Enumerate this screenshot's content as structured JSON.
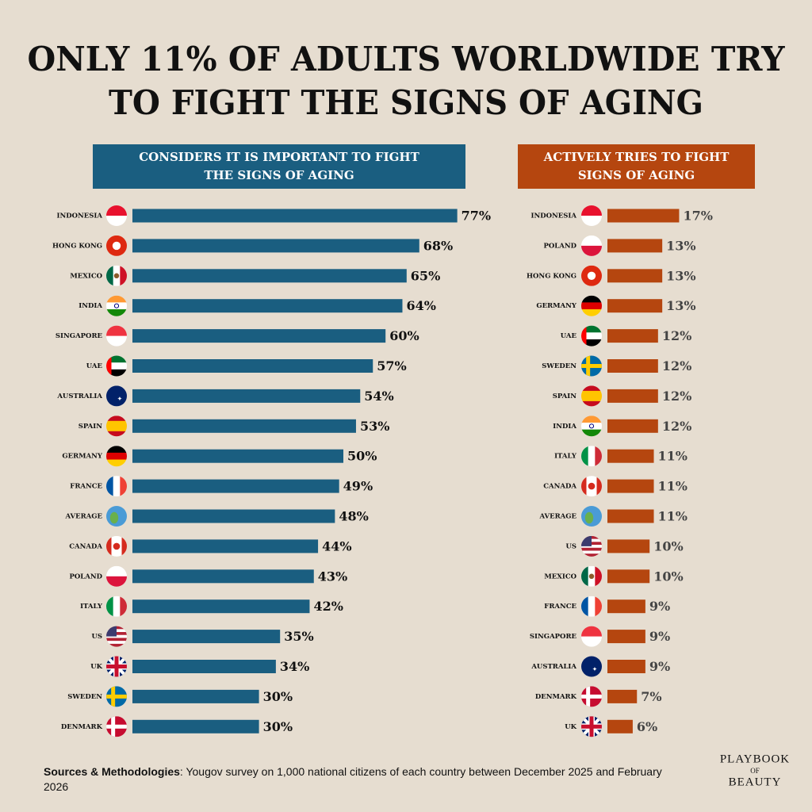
{
  "title": [
    "ONLY 11% OF ADULTS WORLDWIDE TRY",
    "TO FIGHT THE SIGNS OF AGING"
  ],
  "chart_data": [
    {
      "type": "bar",
      "title": [
        "CONSIDERS IT IS IMPORTANT TO FIGHT",
        "THE SIGNS OF AGING"
      ],
      "categories": [
        "INDONESIA",
        "HONG KONG",
        "MEXICO",
        "INDIA",
        "SINGAPORE",
        "UAE",
        "AUSTRALIA",
        "SPAIN",
        "GERMANY",
        "FRANCE",
        "AVERAGE",
        "CANADA",
        "POLAND",
        "ITALY",
        "US",
        "UK",
        "SWEDEN",
        "DENMARK"
      ],
      "values": [
        77,
        68,
        65,
        64,
        60,
        57,
        54,
        53,
        50,
        49,
        48,
        44,
        43,
        42,
        35,
        34,
        30,
        30
      ],
      "value_labels": [
        "77%",
        "68%",
        "65%",
        "64%",
        "60%",
        "57%",
        "54%",
        "53%",
        "50%",
        "49%",
        "48%",
        "44%",
        "43%",
        "42%",
        "35%",
        "34%",
        "30%",
        "30%"
      ],
      "color": "#1a5e80"
    },
    {
      "type": "bar",
      "title": [
        "ACTIVELY TRIES TO FIGHT",
        "SIGNS OF AGING"
      ],
      "categories": [
        "INDONESIA",
        "POLAND",
        "HONG KONG",
        "GERMANY",
        "UAE",
        "SWEDEN",
        "SPAIN",
        "INDIA",
        "ITALY",
        "CANADA",
        "AVERAGE",
        "US",
        "MEXICO",
        "FRANCE",
        "SINGAPORE",
        "AUSTRALIA",
        "DENMARK",
        "UK"
      ],
      "values": [
        17,
        13,
        13,
        13,
        12,
        12,
        12,
        12,
        11,
        11,
        11,
        10,
        10,
        9,
        9,
        9,
        7,
        6
      ],
      "value_labels": [
        "17%",
        "13%",
        "13%",
        "13%",
        "12%",
        "12%",
        "12%",
        "12%",
        "11%",
        "11%",
        "11%",
        "10%",
        "10%",
        "9%",
        "9%",
        "9%",
        "7%",
        "6%"
      ],
      "color": "#b5460f"
    }
  ],
  "source": {
    "label": "Sources & Methodologies",
    "text": ": Yougov survey on 1,000 national citizens of each country between December 2025 and February 2026"
  },
  "logo": [
    "PLAYBOOK",
    "OF",
    "BEAUTY"
  ]
}
